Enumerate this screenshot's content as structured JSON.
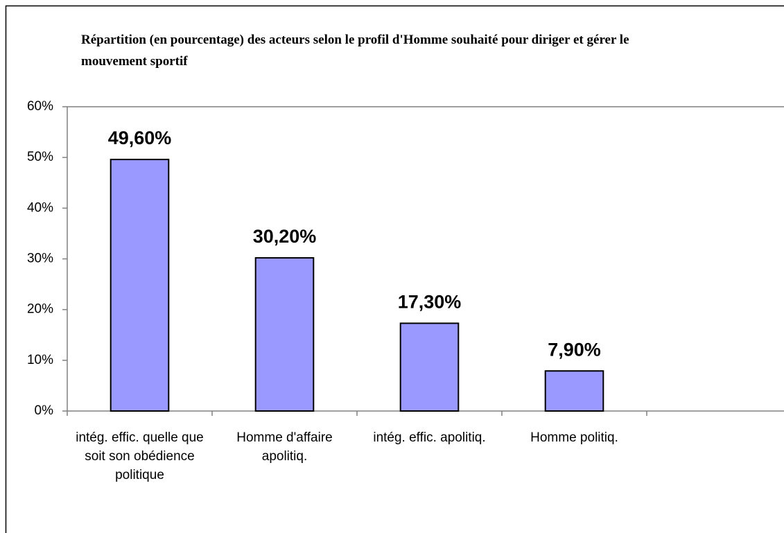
{
  "chart_data": {
    "type": "bar",
    "title": "Répartition (en pourcentage) des acteurs selon le profil d'Homme souhaité pour diriger et gérer le mouvement sportif",
    "categories": [
      "intég. effic. quelle que soit son obédience politique",
      "Homme d'affaire apolitiq.",
      "intég. effic. apolitiq.",
      "Homme politiq.",
      null
    ],
    "values": [
      49.6,
      30.2,
      17.3,
      7.9,
      null
    ],
    "value_labels": [
      "49,60%",
      "30,20%",
      "17,30%",
      "7,90%",
      null
    ],
    "color": "#9999ff",
    "ylim": [
      0,
      60
    ],
    "yticks": [
      {
        "value": 0,
        "label": "0%"
      },
      {
        "value": 10,
        "label": "10%"
      },
      {
        "value": 20,
        "label": "20%"
      },
      {
        "value": 30,
        "label": "30%"
      },
      {
        "value": 40,
        "label": "40%"
      },
      {
        "value": 50,
        "label": "50%"
      },
      {
        "value": 60,
        "label": "60%"
      }
    ],
    "grid": false
  }
}
